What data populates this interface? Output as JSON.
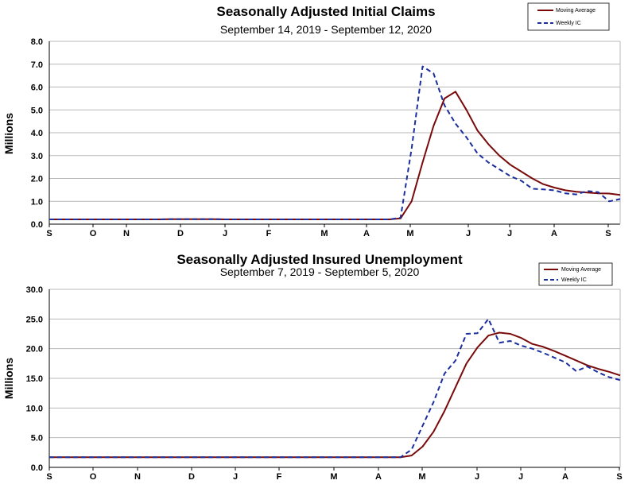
{
  "chart_data": [
    {
      "type": "line",
      "title": "Seasonally Adjusted Initial Claims",
      "subtitle": "September 14, 2019 - September 12, 2020",
      "ylabel": "Millions",
      "ylim": [
        0,
        8
      ],
      "yticks": [
        "0.0",
        "1.0",
        "2.0",
        "3.0",
        "4.0",
        "5.0",
        "6.0",
        "7.0",
        "8.0"
      ],
      "month_labels": [
        "S",
        "O",
        "N",
        "D",
        "J",
        "F",
        "M",
        "A",
        "M",
        "J",
        "J",
        "A",
        "S"
      ],
      "grid": true,
      "legend_position": "top-right",
      "x": [
        0,
        1,
        2,
        3,
        4,
        5,
        6,
        7,
        8,
        9,
        10,
        11,
        12,
        13,
        14,
        15,
        16,
        17,
        18,
        19,
        20,
        21,
        22,
        23,
        24,
        25,
        26,
        27,
        28,
        29,
        30,
        31,
        32,
        33,
        34,
        35,
        36,
        37,
        38,
        39,
        40,
        41,
        42,
        43,
        44,
        45,
        46,
        47,
        48,
        49,
        50,
        51,
        52
      ],
      "series": [
        {
          "name": "Moving Average",
          "color": "#7a0a0a",
          "style": "solid",
          "values": [
            0.21,
            0.21,
            0.21,
            0.21,
            0.21,
            0.21,
            0.21,
            0.21,
            0.21,
            0.21,
            0.21,
            0.22,
            0.22,
            0.22,
            0.22,
            0.22,
            0.21,
            0.21,
            0.21,
            0.21,
            0.21,
            0.21,
            0.21,
            0.21,
            0.21,
            0.21,
            0.21,
            0.21,
            0.21,
            0.21,
            0.21,
            0.21,
            0.25,
            1.0,
            2.7,
            4.3,
            5.5,
            5.8,
            5.0,
            4.1,
            3.5,
            3.0,
            2.6,
            2.3,
            2.0,
            1.75,
            1.6,
            1.48,
            1.42,
            1.38,
            1.35,
            1.34,
            1.28
          ]
        },
        {
          "name": "Weekly IC",
          "color": "#1a2e9e",
          "style": "dashed",
          "values": [
            0.21,
            0.21,
            0.21,
            0.21,
            0.21,
            0.21,
            0.21,
            0.21,
            0.21,
            0.21,
            0.21,
            0.22,
            0.22,
            0.22,
            0.22,
            0.22,
            0.21,
            0.21,
            0.21,
            0.21,
            0.21,
            0.21,
            0.21,
            0.21,
            0.21,
            0.21,
            0.21,
            0.21,
            0.21,
            0.21,
            0.21,
            0.21,
            0.28,
            3.3,
            6.9,
            6.6,
            5.2,
            4.4,
            3.8,
            3.1,
            2.7,
            2.4,
            2.1,
            1.9,
            1.55,
            1.52,
            1.48,
            1.35,
            1.3,
            1.45,
            1.4,
            1.0,
            1.1
          ]
        }
      ]
    },
    {
      "type": "line",
      "title": "Seasonally Adjusted Insured Unemployment",
      "subtitle": "September 7, 2019 - September 5, 2020",
      "ylabel": "Millions",
      "ylim": [
        0,
        30
      ],
      "yticks": [
        "0.0",
        "5.0",
        "10.0",
        "15.0",
        "20.0",
        "25.0",
        "30.0"
      ],
      "month_labels": [
        "S",
        "O",
        "N",
        "D",
        "J",
        "F",
        "M",
        "A",
        "M",
        "J",
        "J",
        "A",
        "S"
      ],
      "grid": true,
      "legend_position": "top-right",
      "x": [
        0,
        1,
        2,
        3,
        4,
        5,
        6,
        7,
        8,
        9,
        10,
        11,
        12,
        13,
        14,
        15,
        16,
        17,
        18,
        19,
        20,
        21,
        22,
        23,
        24,
        25,
        26,
        27,
        28,
        29,
        30,
        31,
        32,
        33,
        34,
        35,
        36,
        37,
        38,
        39,
        40,
        41,
        42,
        43,
        44,
        45,
        46,
        47,
        48,
        49,
        50,
        51,
        52
      ],
      "series": [
        {
          "name": "Moving Average",
          "color": "#7a0a0a",
          "style": "solid",
          "values": [
            1.7,
            1.7,
            1.7,
            1.7,
            1.7,
            1.7,
            1.7,
            1.7,
            1.7,
            1.7,
            1.7,
            1.7,
            1.7,
            1.7,
            1.7,
            1.7,
            1.7,
            1.7,
            1.7,
            1.7,
            1.7,
            1.7,
            1.7,
            1.7,
            1.7,
            1.7,
            1.7,
            1.7,
            1.7,
            1.7,
            1.7,
            1.7,
            1.7,
            2.0,
            3.5,
            6.0,
            9.5,
            13.5,
            17.5,
            20.2,
            22.2,
            22.7,
            22.5,
            21.8,
            20.8,
            20.3,
            19.6,
            18.8,
            18.0,
            17.2,
            16.6,
            16.1,
            15.5
          ]
        },
        {
          "name": "Weekly IC",
          "color": "#1a2e9e",
          "style": "dashed",
          "values": [
            1.7,
            1.7,
            1.7,
            1.7,
            1.7,
            1.7,
            1.7,
            1.7,
            1.7,
            1.7,
            1.7,
            1.7,
            1.7,
            1.7,
            1.7,
            1.7,
            1.7,
            1.7,
            1.7,
            1.7,
            1.7,
            1.7,
            1.7,
            1.7,
            1.7,
            1.7,
            1.7,
            1.7,
            1.7,
            1.7,
            1.7,
            1.7,
            1.7,
            3.0,
            7.0,
            11.0,
            15.8,
            18.0,
            22.5,
            22.6,
            25.0,
            21.0,
            21.3,
            20.5,
            20.0,
            19.3,
            18.5,
            17.7,
            16.2,
            17.0,
            16.0,
            15.2,
            14.7
          ]
        }
      ]
    }
  ]
}
